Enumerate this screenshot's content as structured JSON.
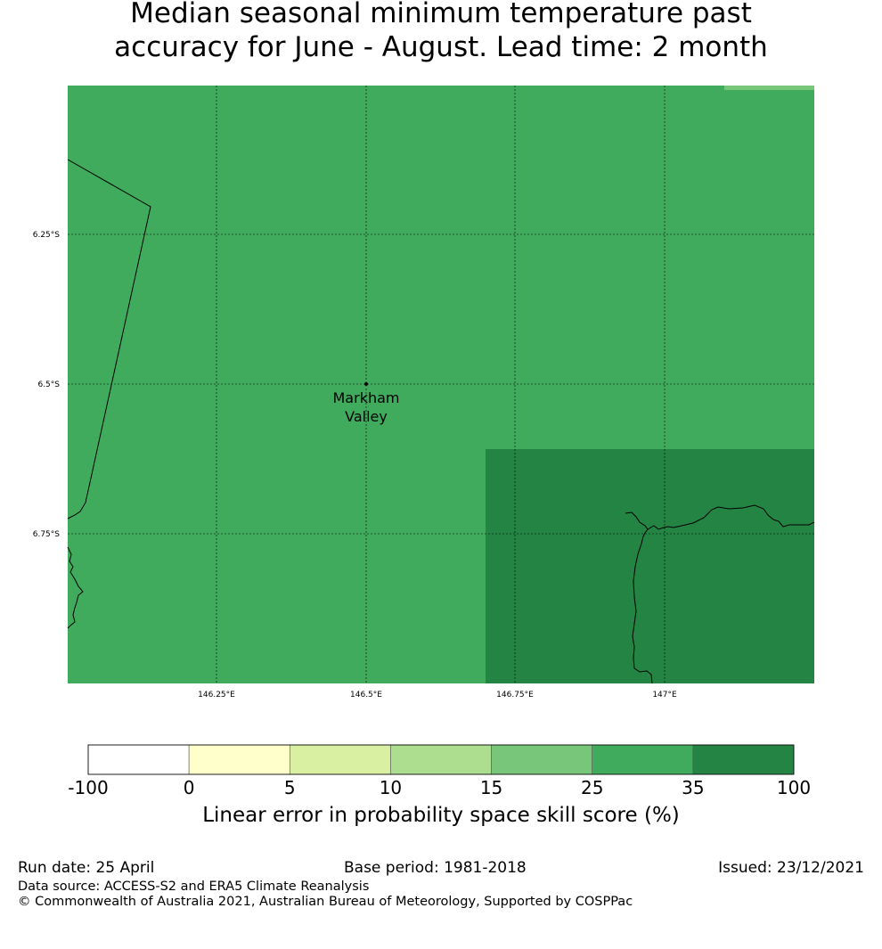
{
  "title": {
    "line1": "Median seasonal minimum temperature past",
    "line2": "accuracy for June - August. Lead time: 2 month"
  },
  "map": {
    "grid_labels": {
      "lat": [
        "6.25°S",
        "6.5°S",
        "6.75°S"
      ],
      "lon": [
        "146.25°E",
        "146.5°E",
        "146.75°E",
        "147°E"
      ]
    },
    "place": {
      "line1": "Markham",
      "line2": "Valley"
    },
    "colors": {
      "main_fill": "#41ab5d",
      "dark_fill": "#238443",
      "light_fill": "#78c679"
    }
  },
  "colorbar": {
    "labels": [
      "-100",
      "0",
      "5",
      "10",
      "15",
      "25",
      "35",
      "100"
    ],
    "colors": [
      "#ffffff",
      "#ffffcc",
      "#d9f0a3",
      "#addd8e",
      "#78c679",
      "#41ab5d",
      "#238443"
    ],
    "title": "Linear error in probability space skill score (%)"
  },
  "footer": {
    "run_date": "Run date: 25 April",
    "base_period": "Base period: 1981-2018",
    "issued": "Issued: 23/12/2021",
    "data_source": "Data source: ACCESS-S2 and ERA5 Climate Reanalysis",
    "copyright": "© Commonwealth of Australia 2021, Australian Bureau of Meteorology, Supported by COSPPac"
  }
}
